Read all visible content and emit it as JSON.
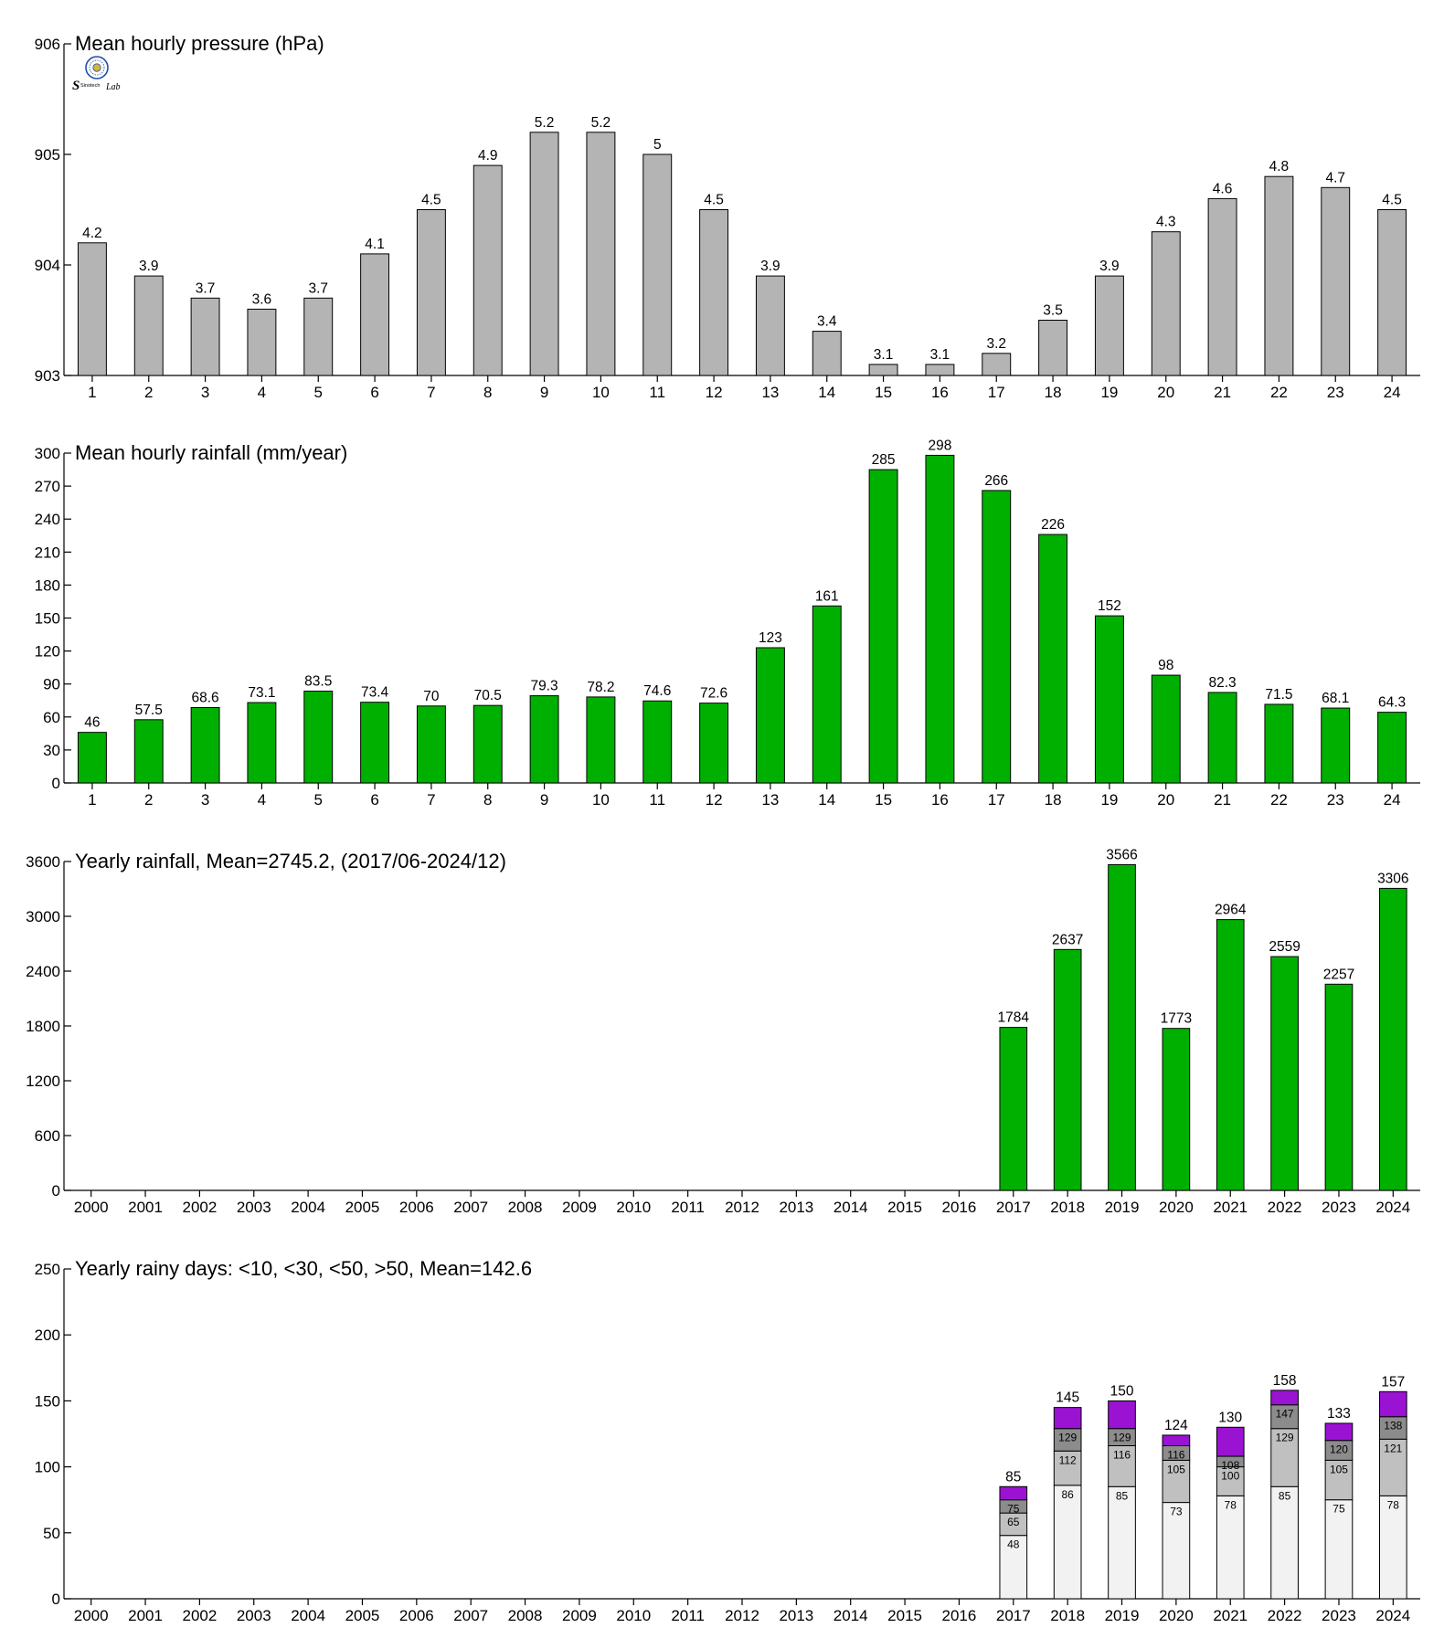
{
  "logo": {
    "text": "Sinotech Lab",
    "colors": {
      "ring": "#1f4fa8",
      "s": "#e23a2a",
      "lab": "#2aa12a",
      "center": "#d9b43a"
    }
  },
  "chart_data": [
    {
      "id": "pressure",
      "type": "bar",
      "title": "Mean hourly pressure (hPa)",
      "categories": [
        "1",
        "2",
        "3",
        "4",
        "5",
        "6",
        "7",
        "8",
        "9",
        "10",
        "11",
        "12",
        "13",
        "14",
        "15",
        "16",
        "17",
        "18",
        "19",
        "20",
        "21",
        "22",
        "23",
        "24"
      ],
      "values": [
        904.2,
        903.9,
        903.7,
        903.6,
        903.7,
        904.1,
        904.5,
        904.9,
        905.2,
        905.2,
        905.0,
        904.5,
        903.9,
        903.4,
        903.1,
        903.1,
        903.2,
        903.5,
        903.9,
        904.3,
        904.6,
        904.8,
        904.7,
        904.5
      ],
      "labels": [
        "4.2",
        "3.9",
        "3.7",
        "3.6",
        "3.7",
        "4.1",
        "4.5",
        "4.9",
        "5.2",
        "5.2",
        "5",
        "4.5",
        "3.9",
        "3.4",
        "3.1",
        "3.1",
        "3.2",
        "3.5",
        "3.9",
        "4.3",
        "4.6",
        "4.8",
        "4.7",
        "4.5"
      ],
      "ylim": [
        903,
        906
      ],
      "yticks": [
        903,
        904,
        905,
        906
      ],
      "color": "#b4b4b4",
      "grid": false
    },
    {
      "id": "hourly_rain",
      "type": "bar",
      "title": "Mean hourly rainfall (mm/year)",
      "categories": [
        "1",
        "2",
        "3",
        "4",
        "5",
        "6",
        "7",
        "8",
        "9",
        "10",
        "11",
        "12",
        "13",
        "14",
        "15",
        "16",
        "17",
        "18",
        "19",
        "20",
        "21",
        "22",
        "23",
        "24"
      ],
      "values": [
        46,
        57.5,
        68.6,
        73.1,
        83.5,
        73.4,
        70,
        70.5,
        79.3,
        78.2,
        74.6,
        72.6,
        123,
        161,
        285,
        298,
        266,
        226,
        152,
        98,
        82.3,
        71.5,
        68.1,
        64.3
      ],
      "labels": [
        "46",
        "57.5",
        "68.6",
        "73.1",
        "83.5",
        "73.4",
        "70",
        "70.5",
        "79.3",
        "78.2",
        "74.6",
        "72.6",
        "123",
        "161",
        "285",
        "298",
        "266",
        "226",
        "152",
        "98",
        "82.3",
        "71.5",
        "68.1",
        "64.3"
      ],
      "ylim": [
        0,
        300
      ],
      "yticks": [
        0,
        30,
        60,
        90,
        120,
        150,
        180,
        210,
        240,
        270,
        300
      ],
      "color": "#00b000",
      "grid": false
    },
    {
      "id": "yearly_rain",
      "type": "bar",
      "title": "Yearly rainfall, Mean=2745.2, (2017/06-2024/12)",
      "categories": [
        "2000",
        "2001",
        "2002",
        "2003",
        "2004",
        "2005",
        "2006",
        "2007",
        "2008",
        "2009",
        "2010",
        "2011",
        "2012",
        "2013",
        "2014",
        "2015",
        "2016",
        "2017",
        "2018",
        "2019",
        "2020",
        "2021",
        "2022",
        "2023",
        "2024"
      ],
      "values": [
        null,
        null,
        null,
        null,
        null,
        null,
        null,
        null,
        null,
        null,
        null,
        null,
        null,
        null,
        null,
        null,
        null,
        1784,
        2637,
        3566,
        1773,
        2964,
        2559,
        2257,
        3306
      ],
      "labels": [
        "",
        "",
        "",
        "",
        "",
        "",
        "",
        "",
        "",
        "",
        "",
        "",
        "",
        "",
        "",
        "",
        "",
        "1784",
        "2637",
        "3566",
        "1773",
        "2964",
        "2559",
        "2257",
        "3306"
      ],
      "ylim": [
        0,
        3600
      ],
      "yticks": [
        0,
        600,
        1200,
        1800,
        2400,
        3000,
        3600
      ],
      "color": "#00b000",
      "grid": false
    },
    {
      "id": "rainy_days",
      "type": "bar",
      "stacked": true,
      "title": "Yearly rainy days: <10, <30, <50, >50, Mean=142.6",
      "categories": [
        "2000",
        "2001",
        "2002",
        "2003",
        "2004",
        "2005",
        "2006",
        "2007",
        "2008",
        "2009",
        "2010",
        "2011",
        "2012",
        "2013",
        "2014",
        "2015",
        "2016",
        "2017",
        "2018",
        "2019",
        "2020",
        "2021",
        "2022",
        "2023",
        "2024"
      ],
      "ylim": [
        0,
        250
      ],
      "yticks": [
        0,
        50,
        100,
        150,
        200,
        250
      ],
      "colors": [
        "#f2f2f2",
        "#c0c0c0",
        "#8c8c8c",
        "#9a12d2"
      ],
      "cumulative": [
        null,
        null,
        null,
        null,
        null,
        null,
        null,
        null,
        null,
        null,
        null,
        null,
        null,
        null,
        null,
        null,
        null,
        [
          48,
          65,
          75,
          85
        ],
        [
          86,
          112,
          129,
          145
        ],
        [
          85,
          116,
          129,
          150
        ],
        [
          73,
          105,
          116,
          124
        ],
        [
          78,
          100,
          108,
          130
        ],
        [
          85,
          129,
          147,
          158
        ],
        [
          75,
          105,
          120,
          133
        ],
        [
          78,
          121,
          138,
          157
        ]
      ],
      "grid": false
    }
  ]
}
